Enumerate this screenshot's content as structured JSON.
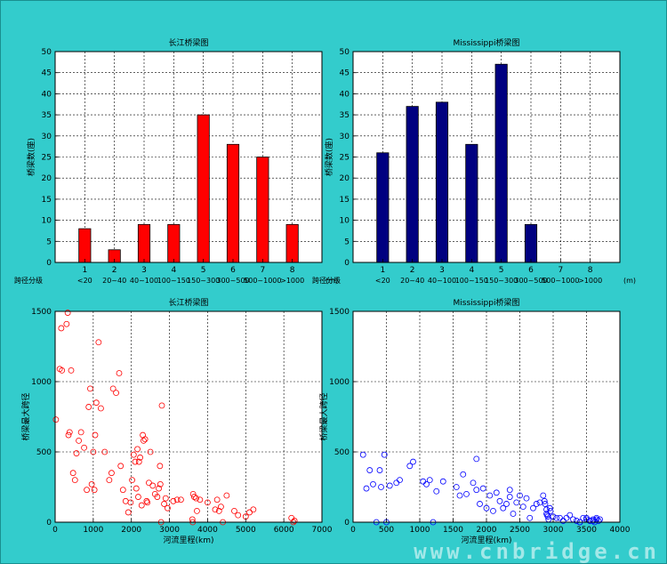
{
  "chart_data": [
    {
      "type": "bar",
      "title": "长江桥梁图",
      "ylabel": "桥梁数(座)",
      "xlabel_prefix": "跨径分级",
      "xlabel_suffix": "(m)",
      "categories": [
        "1",
        "2",
        "3",
        "4",
        "5",
        "6",
        "7",
        "8"
      ],
      "category_labels": [
        "<20",
        "20~40",
        "40~100",
        "100~150",
        "150~300",
        "300~500",
        "500~1000",
        ">1000"
      ],
      "values": [
        8,
        3,
        9,
        9,
        35,
        28,
        25,
        9
      ],
      "ylim": [
        0,
        50
      ],
      "yticks": [
        0,
        5,
        10,
        15,
        20,
        25,
        30,
        35,
        40,
        45,
        50
      ],
      "bar_color": "#ff0000",
      "grid": true
    },
    {
      "type": "bar",
      "title": "Mississippi桥梁图",
      "ylabel": "桥梁数(座)",
      "xlabel_prefix": "跨径分级",
      "xlabel_suffix": "(m)",
      "categories": [
        "1",
        "2",
        "3",
        "4",
        "5",
        "6",
        "7",
        "8"
      ],
      "category_labels": [
        "<20",
        "20~40",
        "40~100",
        "100~150",
        "150~300",
        "300~500",
        "500~1000",
        ">1000"
      ],
      "values": [
        26,
        37,
        38,
        28,
        47,
        9,
        0,
        0
      ],
      "ylim": [
        0,
        50
      ],
      "yticks": [
        0,
        5,
        10,
        15,
        20,
        25,
        30,
        35,
        40,
        45,
        50
      ],
      "bar_color": "#000080",
      "grid": true
    },
    {
      "type": "scatter",
      "title": "长江桥梁图",
      "xlabel": "河流里程(km)",
      "ylabel": "桥梁最大跨径",
      "xlim": [
        0,
        7000
      ],
      "ylim": [
        0,
        1500
      ],
      "xticks": [
        0,
        1000,
        2000,
        3000,
        4000,
        5000,
        6000,
        7000
      ],
      "yticks": [
        0,
        500,
        1000,
        1500
      ],
      "marker_color": "#ff0000",
      "grid": true,
      "x": [
        20,
        120,
        160,
        180,
        300,
        330,
        350,
        380,
        420,
        470,
        520,
        560,
        620,
        680,
        760,
        830,
        880,
        920,
        960,
        1000,
        1030,
        1050,
        1080,
        1140,
        1200,
        1300,
        1420,
        1480,
        1520,
        1600,
        1680,
        1720,
        1780,
        1850,
        1920,
        1980,
        2020,
        2060,
        2100,
        2130,
        2160,
        2180,
        2200,
        2230,
        2270,
        2300,
        2320,
        2360,
        2400,
        2420,
        2460,
        2500,
        2560,
        2620,
        2680,
        2720,
        2750,
        2760,
        2780,
        2800,
        2860,
        2900,
        2950,
        3100,
        3200,
        3300,
        3600,
        3610,
        3620,
        3650,
        3700,
        3720,
        3800,
        4000,
        4200,
        4250,
        4300,
        4350,
        4400,
        4500,
        4700,
        4800,
        5000,
        5100,
        5200,
        6200,
        6250,
        6280
      ],
      "y": [
        730,
        1090,
        1380,
        1080,
        1410,
        1490,
        620,
        640,
        1080,
        350,
        300,
        490,
        580,
        640,
        530,
        230,
        820,
        950,
        270,
        500,
        230,
        620,
        850,
        1280,
        810,
        500,
        300,
        350,
        950,
        920,
        1060,
        400,
        230,
        150,
        70,
        140,
        300,
        480,
        430,
        240,
        520,
        180,
        430,
        460,
        120,
        620,
        580,
        590,
        150,
        140,
        280,
        500,
        260,
        200,
        180,
        240,
        400,
        270,
        0,
        830,
        130,
        170,
        100,
        150,
        160,
        160,
        20,
        0,
        200,
        180,
        170,
        80,
        160,
        140,
        90,
        160,
        80,
        110,
        0,
        190,
        80,
        50,
        40,
        70,
        90,
        30,
        0,
        10
      ]
    },
    {
      "type": "scatter",
      "title": "Mississippi桥梁图",
      "xlabel": "河流里程(km)",
      "ylabel": "桥梁最大跨径",
      "xlim": [
        0,
        4000
      ],
      "ylim": [
        0,
        1500
      ],
      "xticks": [
        0,
        500,
        1000,
        1500,
        2000,
        2500,
        3000,
        3500,
        4000
      ],
      "yticks": [
        0,
        500,
        1000,
        1500
      ],
      "marker_color": "#0000ff",
      "grid": true,
      "x": [
        150,
        200,
        250,
        300,
        350,
        400,
        420,
        470,
        500,
        550,
        650,
        700,
        850,
        900,
        1050,
        1100,
        1150,
        1200,
        1250,
        1350,
        1550,
        1600,
        1650,
        1700,
        1800,
        1850,
        1850,
        1900,
        1950,
        2000,
        2050,
        2100,
        2150,
        2200,
        2250,
        2300,
        2350,
        2350,
        2400,
        2450,
        2500,
        2550,
        2600,
        2650,
        2700,
        2750,
        2800,
        2850,
        2870,
        2880,
        2900,
        2900,
        2910,
        2920,
        2930,
        2950,
        2960,
        3000,
        3050,
        3100,
        3150,
        3200,
        3250,
        3300,
        3350,
        3400,
        3450,
        3500,
        3550,
        3600,
        3650,
        3700,
        3400,
        3500,
        3550,
        3600,
        3620,
        3650,
        3680
      ],
      "y": [
        480,
        240,
        370,
        270,
        0,
        370,
        250,
        480,
        0,
        260,
        280,
        300,
        400,
        430,
        290,
        270,
        300,
        0,
        220,
        290,
        250,
        190,
        340,
        200,
        280,
        230,
        450,
        130,
        240,
        100,
        190,
        80,
        210,
        150,
        100,
        130,
        180,
        230,
        60,
        140,
        190,
        110,
        170,
        30,
        100,
        130,
        140,
        190,
        150,
        130,
        90,
        60,
        50,
        40,
        20,
        100,
        80,
        40,
        30,
        30,
        10,
        30,
        50,
        20,
        10,
        0,
        30,
        20,
        10,
        10,
        20,
        20,
        0,
        30,
        10,
        20,
        0,
        30,
        10
      ]
    }
  ],
  "watermark": "www.cnbridge.cn"
}
